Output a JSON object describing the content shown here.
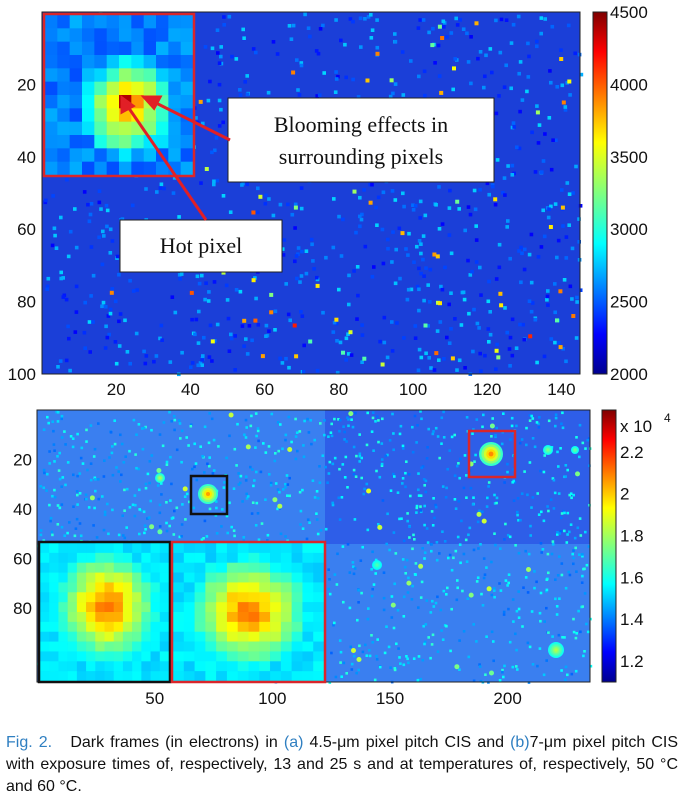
{
  "chart_data": [
    {
      "type": "heatmap",
      "panel": "a",
      "x_ticks": [
        "20",
        "40",
        "60",
        "80",
        "100",
        "120",
        "140"
      ],
      "y_ticks": [
        "20",
        "40",
        "60",
        "80",
        "100"
      ],
      "xlim": [
        0,
        145
      ],
      "ylim": [
        0,
        100
      ],
      "colorbar": {
        "min": 2000,
        "max": 4500,
        "ticks": [
          "2000",
          "2500",
          "3000",
          "3500",
          "4000",
          "4500"
        ]
      },
      "annotations": [
        {
          "text_lines": [
            "Blooming effects in",
            "surrounding pixels"
          ]
        },
        {
          "text_lines": [
            "Hot pixel"
          ]
        }
      ]
    },
    {
      "type": "heatmap",
      "panel": "b",
      "x_ticks": [
        "50",
        "100",
        "150",
        "200"
      ],
      "y_ticks": [
        "20",
        "40",
        "60",
        "80"
      ],
      "xlim": [
        0,
        235
      ],
      "ylim": [
        0,
        110
      ],
      "colorbar": {
        "min": 1.1,
        "max": 2.4,
        "multiplier": "x 10",
        "exponent": "4",
        "ticks": [
          "1.2",
          "1.4",
          "1.6",
          "1.8",
          "2",
          "2.2"
        ]
      }
    }
  ],
  "caption": {
    "label": "Fig. 2.",
    "part1": "Dark frames (in electrons) in ",
    "ref_a": "(a)",
    "part2": " 4.5-μm pixel pitch CIS and ",
    "ref_b": "(b)",
    "part3": "7-μm pixel pitch CIS with exposure times of, respectively, 13 and 25 s and at temperatures of, respectively, 50 °C and 60 °C."
  }
}
